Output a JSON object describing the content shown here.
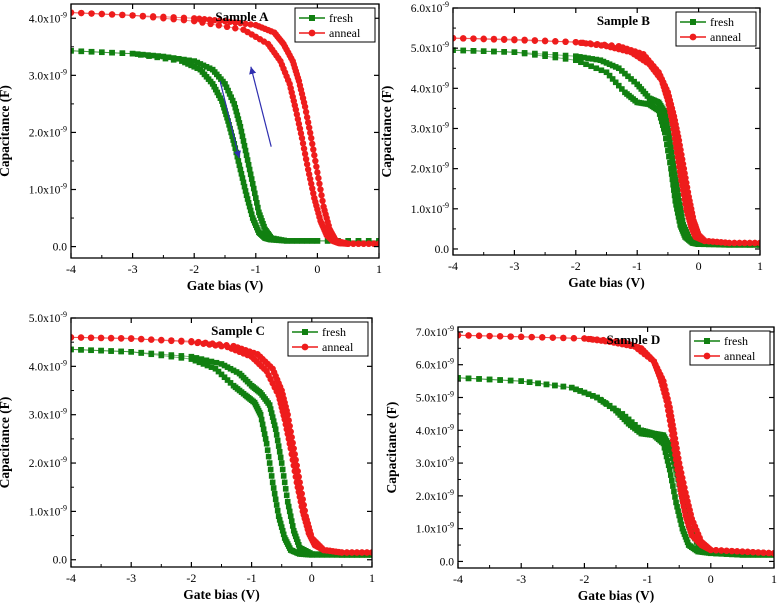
{
  "figure": {
    "xlabel": "Gate bias (V)",
    "ylabel": "Capacitance (F)",
    "exponent": "-9",
    "legend": {
      "fresh": "fresh",
      "anneal": "anneal"
    },
    "colors": {
      "fresh": "#118011",
      "anneal": "#ee1c1c",
      "arrow": "#2f2fb0"
    }
  },
  "chart_data": [
    {
      "type": "scatter",
      "title": "Sample A",
      "xlabel": "Gate bias (V)",
      "ylabel": "Capacitance (F)",
      "xlim": [
        -4,
        1
      ],
      "ylim": [
        -0.2,
        4.25
      ],
      "xticks": [
        "-4",
        "-3",
        "-2",
        "-1",
        "0",
        "1"
      ],
      "yticks": [
        {
          "v": 0,
          "m": "0.0",
          "e": ""
        },
        {
          "v": 1,
          "m": "1.0x10",
          "e": "-9"
        },
        {
          "v": 2,
          "m": "2.0x10",
          "e": "-9"
        },
        {
          "v": 3,
          "m": "3.0x10",
          "e": "-9"
        },
        {
          "v": 4,
          "m": "4.0x10",
          "e": "-9"
        }
      ],
      "legend_position": "top-right",
      "arrows": true,
      "series": [
        {
          "name": "fresh",
          "marker": "square",
          "branches": [
            {
              "xs": [
                -4,
                -3,
                -2.2,
                -1.9,
                -1.7,
                -1.55,
                -1.45,
                -1.35,
                -1.25,
                -1.15,
                -1.05,
                -0.95,
                -0.85,
                -0.75,
                -0.5,
                0,
                1
              ],
              "ys": [
                3.43,
                3.38,
                3.25,
                3.1,
                2.85,
                2.55,
                2.2,
                1.8,
                1.35,
                0.9,
                0.5,
                0.25,
                0.15,
                0.12,
                0.1,
                0.1,
                0.1
              ]
            },
            {
              "xs": [
                1,
                0,
                -0.5,
                -0.75,
                -0.85,
                -0.95,
                -1.05,
                -1.15,
                -1.25,
                -1.35,
                -1.5,
                -1.7,
                -2,
                -2.5,
                -3,
                -4
              ],
              "ys": [
                0.1,
                0.1,
                0.1,
                0.15,
                0.3,
                0.6,
                1.1,
                1.6,
                2.1,
                2.5,
                2.85,
                3.1,
                3.25,
                3.33,
                3.38,
                3.43
              ]
            }
          ]
        },
        {
          "name": "anneal",
          "marker": "circle",
          "branches": [
            {
              "xs": [
                -4,
                -3,
                -2,
                -1.2,
                -0.8,
                -0.6,
                -0.45,
                -0.35,
                -0.25,
                -0.15,
                -0.05,
                0.05,
                0.15,
                0.25,
                0.35,
                0.5,
                1
              ],
              "ys": [
                4.1,
                4.05,
                3.95,
                3.8,
                3.55,
                3.25,
                2.85,
                2.4,
                1.9,
                1.35,
                0.85,
                0.45,
                0.2,
                0.1,
                0.06,
                0.05,
                0.05
              ]
            },
            {
              "xs": [
                1,
                0.5,
                0.3,
                0.2,
                0.1,
                0,
                -0.1,
                -0.2,
                -0.3,
                -0.4,
                -0.55,
                -0.7,
                -1,
                -1.5,
                -2,
                -3,
                -4
              ],
              "ys": [
                0.05,
                0.05,
                0.1,
                0.3,
                0.7,
                1.3,
                1.9,
                2.45,
                2.9,
                3.25,
                3.55,
                3.75,
                3.88,
                3.95,
                4.0,
                4.05,
                4.1
              ]
            }
          ]
        }
      ]
    },
    {
      "type": "scatter",
      "title": "Sample B",
      "xlabel": "Gate bias (V)",
      "ylabel": "Capacitance (F)",
      "xlim": [
        -4,
        1
      ],
      "ylim": [
        -0.15,
        6.0
      ],
      "xticks": [
        "-4",
        "-3",
        "-2",
        "-1",
        "0",
        "1"
      ],
      "yticks": [
        {
          "v": 0,
          "m": "0.0",
          "e": ""
        },
        {
          "v": 1,
          "m": "1.0x10",
          "e": "-9"
        },
        {
          "v": 2,
          "m": "2.0x10",
          "e": "-9"
        },
        {
          "v": 3,
          "m": "3.0x10",
          "e": "-9"
        },
        {
          "v": 4,
          "m": "4.0x10",
          "e": "-9"
        },
        {
          "v": 5,
          "m": "5.0x10",
          "e": "-9"
        },
        {
          "v": 6,
          "m": "6.0x10",
          "e": "-9"
        }
      ],
      "legend_position": "top-right",
      "arrows": false,
      "series": [
        {
          "name": "fresh",
          "marker": "square",
          "branches": [
            {
              "xs": [
                -4,
                -3,
                -2,
                -1.5,
                -1.2,
                -1.0,
                -0.8,
                -0.65,
                -0.55,
                -0.45,
                -0.38,
                -0.3,
                -0.22,
                -0.1,
                0,
                0.5,
                1
              ],
              "ys": [
                4.95,
                4.9,
                4.7,
                4.4,
                3.9,
                3.65,
                3.6,
                3.45,
                2.9,
                2.0,
                1.2,
                0.6,
                0.3,
                0.15,
                0.12,
                0.1,
                0.1
              ]
            },
            {
              "xs": [
                1,
                0,
                -0.15,
                -0.25,
                -0.32,
                -0.4,
                -0.48,
                -0.55,
                -0.65,
                -0.8,
                -1.0,
                -1.3,
                -1.6,
                -2,
                -3,
                -4
              ],
              "ys": [
                0.1,
                0.12,
                0.25,
                0.6,
                1.2,
                2.0,
                2.8,
                3.4,
                3.65,
                3.75,
                4.1,
                4.5,
                4.7,
                4.8,
                4.9,
                4.95
              ]
            }
          ]
        },
        {
          "name": "anneal",
          "marker": "circle",
          "branches": [
            {
              "xs": [
                -4,
                -3,
                -2,
                -1.5,
                -1.1,
                -0.8,
                -0.6,
                -0.5,
                -0.42,
                -0.35,
                -0.28,
                -0.2,
                -0.12,
                -0.05,
                0.1,
                0.5,
                1
              ],
              "ys": [
                5.25,
                5.22,
                5.15,
                5.05,
                4.9,
                4.6,
                4.2,
                3.7,
                3.1,
                2.4,
                1.7,
                1.0,
                0.55,
                0.3,
                0.2,
                0.15,
                0.15
              ]
            },
            {
              "xs": [
                1,
                0.5,
                0.1,
                0,
                -0.08,
                -0.16,
                -0.24,
                -0.32,
                -0.4,
                -0.5,
                -0.65,
                -0.9,
                -1.3,
                -2,
                -3,
                -4
              ],
              "ys": [
                0.15,
                0.15,
                0.2,
                0.35,
                0.7,
                1.3,
                2.0,
                2.7,
                3.3,
                3.9,
                4.4,
                4.85,
                5.05,
                5.15,
                5.2,
                5.25
              ]
            }
          ]
        }
      ]
    },
    {
      "type": "scatter",
      "title": "Sample C",
      "xlabel": "Gate bias (V)",
      "ylabel": "Capacitance (F)",
      "xlim": [
        -4,
        1
      ],
      "ylim": [
        -0.15,
        5.0
      ],
      "xticks": [
        "-4",
        "-3",
        "-2",
        "-1",
        "0",
        "1"
      ],
      "yticks": [
        {
          "v": 0,
          "m": "0.0",
          "e": ""
        },
        {
          "v": 1,
          "m": "1.0x10",
          "e": "-9"
        },
        {
          "v": 2,
          "m": "2.0x10",
          "e": "-9"
        },
        {
          "v": 3,
          "m": "3.0x10",
          "e": "-9"
        },
        {
          "v": 4,
          "m": "4.0x10",
          "e": "-9"
        },
        {
          "v": 5,
          "m": "5.0x10",
          "e": "-9"
        }
      ],
      "legend_position": "top-right",
      "arrows": false,
      "series": [
        {
          "name": "fresh",
          "marker": "square",
          "branches": [
            {
              "xs": [
                -4,
                -3,
                -2,
                -1.6,
                -1.3,
                -1.1,
                -0.95,
                -0.85,
                -0.75,
                -0.65,
                -0.55,
                -0.45,
                -0.35,
                -0.2,
                0,
                0.5,
                1
              ],
              "ys": [
                4.35,
                4.3,
                4.15,
                3.95,
                3.6,
                3.4,
                3.25,
                3.0,
                2.4,
                1.6,
                0.9,
                0.45,
                0.2,
                0.12,
                0.1,
                0.1,
                0.1
              ]
            },
            {
              "xs": [
                1,
                0.5,
                0,
                -0.2,
                -0.3,
                -0.4,
                -0.5,
                -0.6,
                -0.7,
                -0.85,
                -1.0,
                -1.2,
                -1.5,
                -2,
                -3,
                -4
              ],
              "ys": [
                0.1,
                0.1,
                0.12,
                0.25,
                0.6,
                1.2,
                2.0,
                2.7,
                3.2,
                3.45,
                3.6,
                3.85,
                4.05,
                4.2,
                4.3,
                4.35
              ]
            }
          ]
        },
        {
          "name": "anneal",
          "marker": "circle",
          "branches": [
            {
              "xs": [
                -4,
                -3,
                -2,
                -1.4,
                -1.0,
                -0.75,
                -0.55,
                -0.45,
                -0.35,
                -0.25,
                -0.15,
                -0.05,
                0.05,
                0.2,
                0.5,
                1
              ],
              "ys": [
                4.6,
                4.58,
                4.5,
                4.4,
                4.2,
                3.9,
                3.4,
                2.9,
                2.3,
                1.6,
                1.0,
                0.55,
                0.3,
                0.2,
                0.15,
                0.15
              ]
            },
            {
              "xs": [
                1,
                0.5,
                0.2,
                0,
                -0.1,
                -0.2,
                -0.3,
                -0.4,
                -0.5,
                -0.65,
                -0.9,
                -1.3,
                -2,
                -3,
                -4
              ],
              "ys": [
                0.15,
                0.15,
                0.2,
                0.45,
                0.9,
                1.6,
                2.3,
                3.0,
                3.5,
                3.95,
                4.25,
                4.42,
                4.52,
                4.57,
                4.6
              ]
            }
          ]
        }
      ]
    },
    {
      "type": "scatter",
      "title": "Sample D",
      "xlabel": "Gate bias (V)",
      "ylabel": "Capacitance (F)",
      "xlim": [
        -4,
        1
      ],
      "ylim": [
        -0.2,
        7.15
      ],
      "xticks": [
        "-4",
        "-3",
        "-2",
        "-1",
        "0",
        "1"
      ],
      "yticks": [
        {
          "v": 0,
          "m": "0.0",
          "e": ""
        },
        {
          "v": 1,
          "m": "1.0x10",
          "e": "-9"
        },
        {
          "v": 2,
          "m": "2.0x10",
          "e": "-9"
        },
        {
          "v": 3,
          "m": "3.0x10",
          "e": "-9"
        },
        {
          "v": 4,
          "m": "4.0x10",
          "e": "-9"
        },
        {
          "v": 5,
          "m": "5.0x10",
          "e": "-9"
        },
        {
          "v": 6,
          "m": "6.0x10",
          "e": "-9"
        },
        {
          "v": 7,
          "m": "7.0x10",
          "e": "-9"
        }
      ],
      "legend_position": "top-right",
      "arrows": false,
      "series": [
        {
          "name": "fresh",
          "marker": "square",
          "branches": [
            {
              "xs": [
                -4,
                -3,
                -2.2,
                -1.8,
                -1.5,
                -1.3,
                -1.1,
                -0.9,
                -0.75,
                -0.65,
                -0.55,
                -0.45,
                -0.35,
                -0.2,
                0,
                0.5,
                1
              ],
              "ys": [
                5.6,
                5.5,
                5.3,
                5.0,
                4.6,
                4.2,
                3.9,
                3.85,
                3.6,
                2.8,
                1.8,
                1.0,
                0.5,
                0.3,
                0.25,
                0.2,
                0.2
              ]
            },
            {
              "xs": [
                1,
                0.5,
                0,
                -0.2,
                -0.35,
                -0.45,
                -0.55,
                -0.65,
                -0.75,
                -0.9,
                -1.1,
                -1.4,
                -1.8,
                -2.2,
                -3,
                -4
              ],
              "ys": [
                0.2,
                0.2,
                0.25,
                0.5,
                1.1,
                1.9,
                2.8,
                3.5,
                3.85,
                3.9,
                4.0,
                4.5,
                5.0,
                5.3,
                5.5,
                5.6
              ]
            }
          ]
        },
        {
          "name": "anneal",
          "marker": "circle",
          "branches": [
            {
              "xs": [
                -4,
                -3,
                -2,
                -1.4,
                -1.1,
                -0.9,
                -0.8,
                -0.7,
                -0.62,
                -0.55,
                -0.48,
                -0.4,
                -0.3,
                -0.15,
                0,
                0.5,
                1
              ],
              "ys": [
                6.9,
                6.85,
                6.8,
                6.7,
                6.5,
                6.1,
                5.6,
                4.9,
                4.0,
                3.1,
                2.2,
                1.4,
                0.8,
                0.5,
                0.35,
                0.3,
                0.25
              ]
            },
            {
              "xs": [
                1,
                0.5,
                0,
                -0.15,
                -0.3,
                -0.4,
                -0.5,
                -0.58,
                -0.65,
                -0.75,
                -0.9,
                -1.2,
                -1.6,
                -2,
                -3,
                -4
              ],
              "ys": [
                0.25,
                0.3,
                0.35,
                0.6,
                1.3,
                2.1,
                3.0,
                3.9,
                4.7,
                5.5,
                6.1,
                6.55,
                6.7,
                6.8,
                6.85,
                6.9
              ]
            }
          ]
        }
      ]
    }
  ]
}
